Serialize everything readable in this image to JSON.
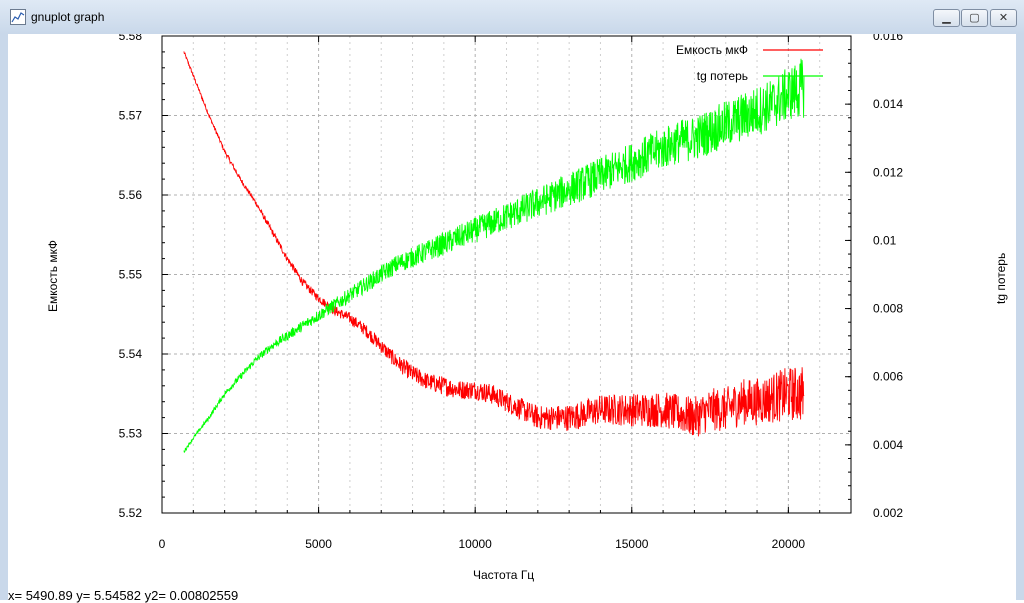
{
  "window": {
    "title": "gnuplot graph",
    "minimize_glyph": "▁",
    "maximize_glyph": "▢",
    "close_glyph": "✕"
  },
  "status": {
    "text": "x= 5490.89 y= 5.54582 y2= 0.00802559"
  },
  "chart_data": {
    "type": "line",
    "title": "",
    "xlabel": "Частота Гц",
    "ylabel": "Емкость мкФ",
    "y2label": "tg потерь",
    "xlim": [
      0,
      22000
    ],
    "ylim": [
      5.52,
      5.58
    ],
    "y2lim": [
      0.002,
      0.016
    ],
    "x_ticks": [
      "0",
      "5000",
      "10000",
      "15000",
      "20000"
    ],
    "x_tick_values": [
      0,
      5000,
      10000,
      15000,
      20000
    ],
    "y_ticks": [
      "5.52",
      "5.53",
      "5.54",
      "5.55",
      "5.56",
      "5.57",
      "5.58"
    ],
    "y_tick_values": [
      5.52,
      5.53,
      5.54,
      5.55,
      5.56,
      5.57,
      5.58
    ],
    "y2_ticks": [
      "0.002",
      "0.004",
      "0.006",
      "0.008",
      "0.01",
      "0.012",
      "0.014",
      "0.016"
    ],
    "y2_tick_values": [
      0.002,
      0.004,
      0.006,
      0.008,
      0.01,
      0.012,
      0.014,
      0.016
    ],
    "grid": true,
    "legend_position": "top-right",
    "series": [
      {
        "name": "Емкость мкФ",
        "axis": "y",
        "color": "#ff0000",
        "x": [
          700,
          1000,
          1500,
          2000,
          2500,
          3000,
          3500,
          4000,
          4500,
          5000,
          5500,
          6000,
          6500,
          7000,
          7500,
          8000,
          8500,
          9000,
          9500,
          10000,
          10500,
          11000,
          11500,
          12000,
          12500,
          13000,
          13500,
          14000,
          14500,
          15000,
          15500,
          16000,
          16500,
          17000,
          17500,
          18000,
          18500,
          19000,
          19500,
          20000,
          20500
        ],
        "y": [
          5.578,
          5.575,
          5.57,
          5.5655,
          5.562,
          5.559,
          5.5555,
          5.552,
          5.549,
          5.547,
          5.5455,
          5.5445,
          5.543,
          5.541,
          5.539,
          5.5375,
          5.5365,
          5.536,
          5.5355,
          5.5355,
          5.535,
          5.534,
          5.533,
          5.532,
          5.532,
          5.532,
          5.5325,
          5.533,
          5.533,
          5.533,
          5.533,
          5.533,
          5.5325,
          5.532,
          5.533,
          5.533,
          5.534,
          5.534,
          5.5345,
          5.535,
          5.535
        ],
        "noise": [
          0.0002,
          0.0002,
          0.0002,
          0.0003,
          0.0003,
          0.0003,
          0.0004,
          0.0004,
          0.0005,
          0.0005,
          0.0006,
          0.0007,
          0.0008,
          0.0009,
          0.001,
          0.0011,
          0.0011,
          0.0012,
          0.0012,
          0.0012,
          0.0013,
          0.0013,
          0.0014,
          0.0015,
          0.0016,
          0.0017,
          0.0018,
          0.0019,
          0.002,
          0.0021,
          0.0022,
          0.0023,
          0.0024,
          0.0026,
          0.0027,
          0.0028,
          0.0029,
          0.003,
          0.0032,
          0.0034,
          0.0036
        ]
      },
      {
        "name": "tg потерь",
        "axis": "y2",
        "color": "#00ff00",
        "x": [
          700,
          1000,
          1500,
          2000,
          2500,
          3000,
          3500,
          4000,
          4500,
          5000,
          5500,
          6000,
          6500,
          7000,
          7500,
          8000,
          8500,
          9000,
          9500,
          10000,
          10500,
          11000,
          11500,
          12000,
          12500,
          13000,
          13500,
          14000,
          14500,
          15000,
          15500,
          16000,
          16500,
          17000,
          17500,
          18000,
          18500,
          19000,
          19500,
          20000,
          20500
        ],
        "y": [
          0.0038,
          0.0042,
          0.0048,
          0.0055,
          0.006,
          0.0065,
          0.0069,
          0.0072,
          0.0075,
          0.0078,
          0.0081,
          0.0084,
          0.0087,
          0.009,
          0.0093,
          0.0095,
          0.0097,
          0.0099,
          0.0101,
          0.0103,
          0.0105,
          0.0107,
          0.0109,
          0.0111,
          0.0113,
          0.0115,
          0.0117,
          0.0119,
          0.0121,
          0.0123,
          0.0125,
          0.0127,
          0.0129,
          0.013,
          0.0132,
          0.0134,
          0.0136,
          0.0138,
          0.014,
          0.0143,
          0.0145
        ],
        "noise": [
          5e-05,
          5e-05,
          6e-05,
          8e-05,
          0.0001,
          0.0001,
          0.00012,
          0.00014,
          0.00016,
          0.00018,
          0.0002,
          0.00022,
          0.00024,
          0.00026,
          0.00028,
          0.0003,
          0.00032,
          0.00034,
          0.00036,
          0.00038,
          0.0004,
          0.00042,
          0.00044,
          0.00046,
          0.00048,
          0.0005,
          0.00052,
          0.00054,
          0.00056,
          0.00058,
          0.0006,
          0.00062,
          0.00064,
          0.00066,
          0.00068,
          0.0007,
          0.00072,
          0.00074,
          0.00076,
          0.0008,
          0.0009
        ]
      }
    ]
  }
}
